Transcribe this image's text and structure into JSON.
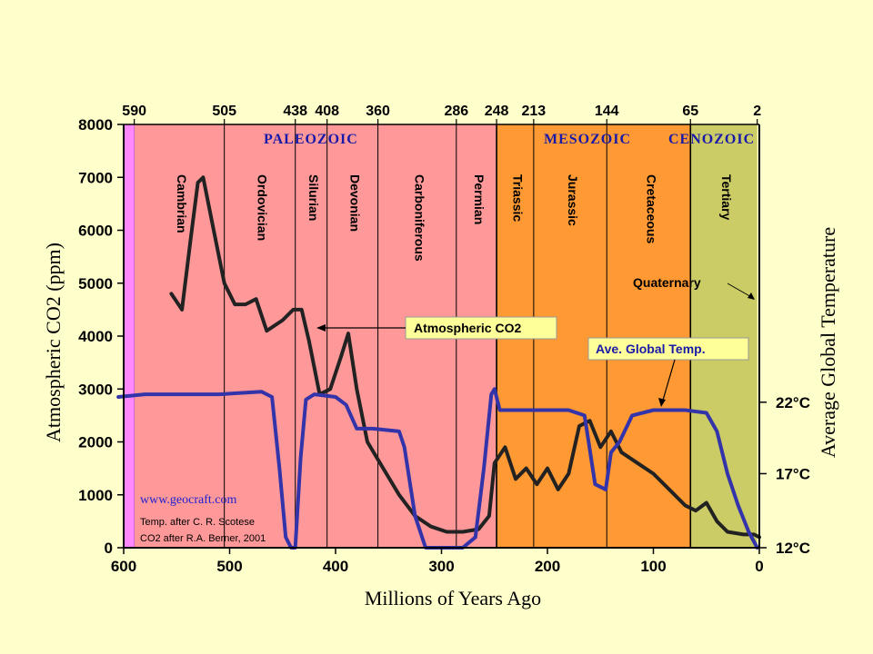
{
  "chart_data": {
    "type": "line",
    "xlabel": "Millions of Years Ago",
    "ylabel": "Atmospheric CO2 (ppm)",
    "ylabel_right": "Average Global Temperature",
    "xlim": [
      600,
      0
    ],
    "ylim": [
      0,
      8000
    ],
    "x_ticks": [
      600,
      500,
      400,
      300,
      200,
      100,
      0
    ],
    "y_ticks": [
      0,
      1000,
      2000,
      3000,
      4000,
      5000,
      6000,
      7000,
      8000
    ],
    "y_right_ticks": [
      {
        "label": "12°C",
        "at": 0
      },
      {
        "label": "17°C",
        "at": 1400
      },
      {
        "label": "22°C",
        "at": 2750
      }
    ],
    "top_ticks": [
      590,
      505,
      438,
      408,
      360,
      286,
      248,
      213,
      144,
      65,
      2
    ],
    "eras": [
      {
        "name": "PALEOZOIC",
        "start": 590,
        "end": 248,
        "color": "#ff9999"
      },
      {
        "name": "MESOZOIC",
        "start": 248,
        "end": 65,
        "color": "#ff9933"
      },
      {
        "name": "CENOZOIC",
        "start": 65,
        "end": 2,
        "color": "#cccc66"
      }
    ],
    "precambrian_color": "#ff88ff",
    "periods": [
      {
        "name": "Cambrian",
        "start": 590,
        "end": 505
      },
      {
        "name": "Ordovician",
        "start": 505,
        "end": 438
      },
      {
        "name": "Silurian",
        "start": 438,
        "end": 408
      },
      {
        "name": "Devonian",
        "start": 408,
        "end": 360
      },
      {
        "name": "Carboniferous",
        "start": 360,
        "end": 286
      },
      {
        "name": "Permian",
        "start": 286,
        "end": 248
      },
      {
        "name": "Triassic",
        "start": 248,
        "end": 213
      },
      {
        "name": "Jurassic",
        "start": 213,
        "end": 144
      },
      {
        "name": "Cretaceous",
        "start": 144,
        "end": 65
      },
      {
        "name": "Tertiary",
        "start": 65,
        "end": 2
      }
    ],
    "quaternary_label": "Quaternary",
    "series": [
      {
        "name": "Atmospheric CO2",
        "color": "#222222",
        "points": [
          [
            555,
            4800
          ],
          [
            545,
            4500
          ],
          [
            537,
            5800
          ],
          [
            530,
            6900
          ],
          [
            525,
            7000
          ],
          [
            515,
            6000
          ],
          [
            505,
            5000
          ],
          [
            495,
            4600
          ],
          [
            485,
            4600
          ],
          [
            475,
            4700
          ],
          [
            465,
            4100
          ],
          [
            450,
            4300
          ],
          [
            440,
            4500
          ],
          [
            432,
            4500
          ],
          [
            425,
            3900
          ],
          [
            415,
            2900
          ],
          [
            405,
            3000
          ],
          [
            395,
            3600
          ],
          [
            388,
            4050
          ],
          [
            380,
            3000
          ],
          [
            370,
            2000
          ],
          [
            355,
            1500
          ],
          [
            340,
            1000
          ],
          [
            325,
            600
          ],
          [
            310,
            400
          ],
          [
            295,
            300
          ],
          [
            280,
            300
          ],
          [
            265,
            350
          ],
          [
            255,
            600
          ],
          [
            250,
            1600
          ],
          [
            240,
            1900
          ],
          [
            230,
            1300
          ],
          [
            220,
            1500
          ],
          [
            210,
            1200
          ],
          [
            200,
            1500
          ],
          [
            190,
            1100
          ],
          [
            180,
            1400
          ],
          [
            170,
            2300
          ],
          [
            160,
            2400
          ],
          [
            150,
            1900
          ],
          [
            140,
            2200
          ],
          [
            130,
            1800
          ],
          [
            115,
            1600
          ],
          [
            100,
            1400
          ],
          [
            85,
            1100
          ],
          [
            70,
            800
          ],
          [
            60,
            700
          ],
          [
            50,
            850
          ],
          [
            40,
            500
          ],
          [
            30,
            300
          ],
          [
            15,
            250
          ],
          [
            5,
            250
          ],
          [
            0,
            200
          ]
        ]
      },
      {
        "name": "Ave. Global Temp.",
        "color": "#3333aa",
        "points": [
          [
            605,
            2850
          ],
          [
            580,
            2900
          ],
          [
            550,
            2900
          ],
          [
            510,
            2900
          ],
          [
            470,
            2950
          ],
          [
            460,
            2850
          ],
          [
            453,
            1500
          ],
          [
            447,
            200
          ],
          [
            442,
            0
          ],
          [
            438,
            0
          ],
          [
            433,
            1700
          ],
          [
            428,
            2800
          ],
          [
            420,
            2900
          ],
          [
            400,
            2850
          ],
          [
            390,
            2700
          ],
          [
            380,
            2250
          ],
          [
            365,
            2250
          ],
          [
            340,
            2200
          ],
          [
            335,
            1900
          ],
          [
            325,
            600
          ],
          [
            315,
            0
          ],
          [
            300,
            0
          ],
          [
            280,
            0
          ],
          [
            268,
            200
          ],
          [
            260,
            1500
          ],
          [
            253,
            2900
          ],
          [
            250,
            3000
          ],
          [
            245,
            2600
          ],
          [
            230,
            2600
          ],
          [
            200,
            2600
          ],
          [
            180,
            2600
          ],
          [
            165,
            2500
          ],
          [
            155,
            1200
          ],
          [
            145,
            1100
          ],
          [
            140,
            1800
          ],
          [
            132,
            2000
          ],
          [
            120,
            2500
          ],
          [
            100,
            2600
          ],
          [
            70,
            2600
          ],
          [
            50,
            2550
          ],
          [
            40,
            2200
          ],
          [
            30,
            1400
          ],
          [
            20,
            800
          ],
          [
            10,
            300
          ],
          [
            2,
            0
          ]
        ]
      }
    ],
    "annotations": [
      {
        "text": "Atmospheric CO2",
        "target_series": "Atmospheric CO2"
      },
      {
        "text": "Ave. Global Temp.",
        "target_series": "Ave. Global Temp."
      }
    ],
    "notes": {
      "url": "www.geocraft.com",
      "line1": "Temp. after C. R. Scotese",
      "line2": "CO2 after R.A. Berner, 2001"
    }
  }
}
